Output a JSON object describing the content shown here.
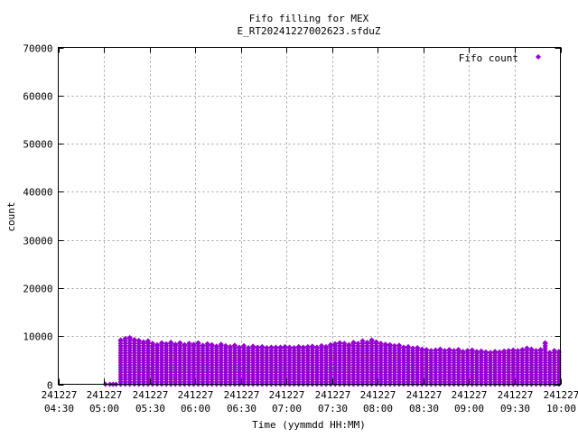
{
  "chart_data": {
    "type": "scatter",
    "title": "Fifo filling for MEX",
    "subtitle": "E_RT20241227002623.sfduZ",
    "xlabel": "Time (yymmdd HH:MM)",
    "ylabel": "count",
    "xlim": [
      "2024-12-27 04:30",
      "2024-12-27 10:00"
    ],
    "ylim": [
      0,
      70000
    ],
    "grid": true,
    "legend_position": "top-right",
    "x_ticks": [
      {
        "date": "241227",
        "time": "04:30"
      },
      {
        "date": "241227",
        "time": "05:00"
      },
      {
        "date": "241227",
        "time": "05:30"
      },
      {
        "date": "241227",
        "time": "06:00"
      },
      {
        "date": "241227",
        "time": "06:30"
      },
      {
        "date": "241227",
        "time": "07:00"
      },
      {
        "date": "241227",
        "time": "07:30"
      },
      {
        "date": "241227",
        "time": "08:00"
      },
      {
        "date": "241227",
        "time": "08:30"
      },
      {
        "date": "241227",
        "time": "09:00"
      },
      {
        "date": "241227",
        "time": "09:30"
      },
      {
        "date": "241227",
        "time": "10:00"
      }
    ],
    "y_ticks": [
      "0",
      "10000",
      "20000",
      "30000",
      "40000",
      "50000",
      "60000",
      "70000"
    ],
    "series": [
      {
        "name": "Fifo count",
        "color": "#9400d3",
        "marker": "diamond",
        "x": [
          "05:01",
          "05:04",
          "05:06",
          "05:08",
          "05:11",
          "05:14",
          "05:17",
          "05:20",
          "05:23",
          "05:26",
          "05:29",
          "05:32",
          "05:35",
          "05:38",
          "05:41",
          "05:44",
          "05:47",
          "05:50",
          "05:53",
          "05:56",
          "05:59",
          "06:02",
          "06:05",
          "06:08",
          "06:11",
          "06:14",
          "06:17",
          "06:20",
          "06:23",
          "06:26",
          "06:29",
          "06:32",
          "06:35",
          "06:38",
          "06:41",
          "06:44",
          "06:47",
          "06:50",
          "06:53",
          "06:56",
          "06:59",
          "07:02",
          "07:05",
          "07:08",
          "07:11",
          "07:14",
          "07:17",
          "07:20",
          "07:23",
          "07:26",
          "07:29",
          "07:32",
          "07:35",
          "07:38",
          "07:41",
          "07:44",
          "07:47",
          "07:50",
          "07:53",
          "07:56",
          "07:59",
          "08:02",
          "08:05",
          "08:08",
          "08:11",
          "08:14",
          "08:17",
          "08:20",
          "08:23",
          "08:26",
          "08:29",
          "08:32",
          "08:35",
          "08:38",
          "08:41",
          "08:44",
          "08:47",
          "08:50",
          "08:53",
          "08:56",
          "08:59",
          "09:02",
          "09:05",
          "09:08",
          "09:11",
          "09:14",
          "09:17",
          "09:20",
          "09:23",
          "09:26",
          "09:29",
          "09:32",
          "09:35",
          "09:38",
          "09:41",
          "09:44",
          "09:47",
          "09:50",
          "09:53",
          "09:56",
          "09:59"
        ],
        "peak_values": [
          0,
          0,
          0,
          0,
          9200,
          9500,
          9700,
          9300,
          9100,
          8800,
          9000,
          8500,
          8200,
          8600,
          8400,
          8700,
          8300,
          8600,
          8200,
          8500,
          8300,
          8600,
          8100,
          8400,
          8200,
          7900,
          8300,
          8000,
          7800,
          8100,
          7700,
          8000,
          7600,
          7900,
          7700,
          7800,
          7600,
          7700,
          7700,
          7700,
          7800,
          7700,
          7600,
          7800,
          7700,
          7800,
          7900,
          7700,
          8000,
          7800,
          8200,
          8400,
          8600,
          8500,
          8200,
          8700,
          8500,
          9000,
          8700,
          9200,
          8800,
          8500,
          8300,
          8200,
          8000,
          8100,
          7700,
          7800,
          7500,
          7600,
          7300,
          7200,
          7000,
          7100,
          7300,
          7000,
          7200,
          7000,
          7200,
          6800,
          7000,
          7100,
          6800,
          6900,
          6700,
          6600,
          6800,
          6700,
          6900,
          7000,
          7100,
          7000,
          7200,
          7500,
          7300,
          7000,
          7200,
          8600,
          6600,
          7000,
          6800
        ],
        "step": 500
      }
    ]
  }
}
